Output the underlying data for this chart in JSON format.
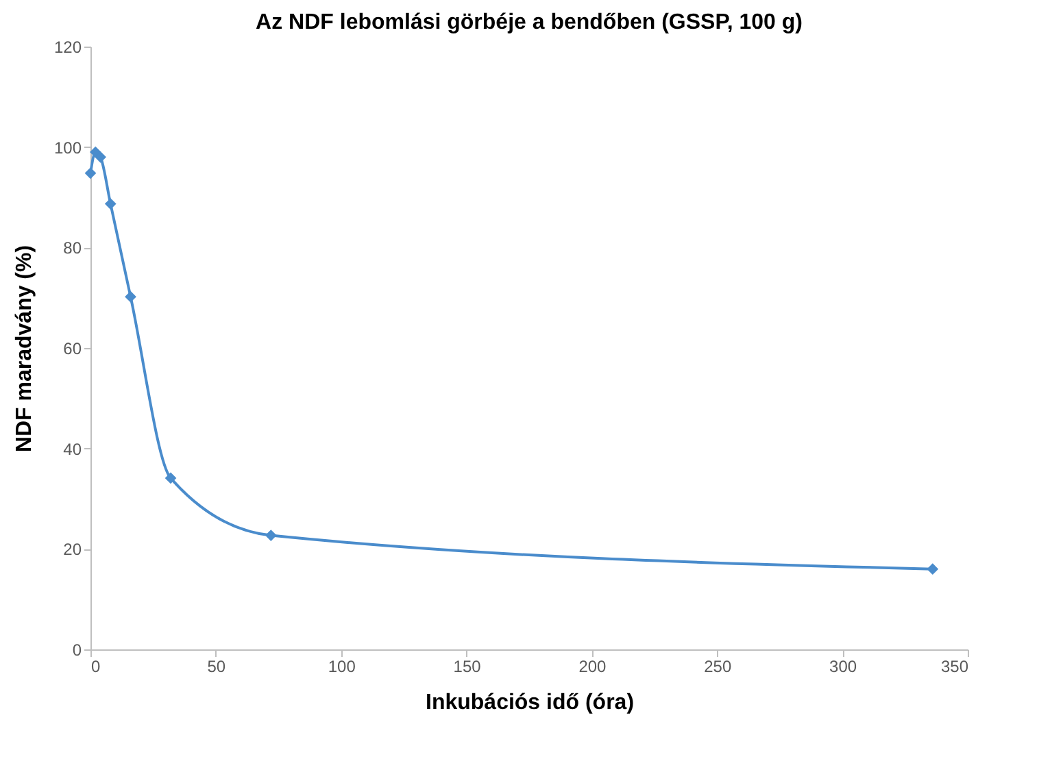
{
  "chart_data": {
    "type": "line",
    "title": "Az NDF lebomlási görbéje a bendőben (GSSP, 100 g)",
    "xlabel": "Inkubációs idő (óra)",
    "ylabel": "NDF maradvány (%)",
    "x": [
      0,
      2,
      4,
      8,
      16,
      32,
      72,
      336
    ],
    "series": [
      {
        "color": "#4a8ccc",
        "values": [
          94.8,
          99,
          98,
          88.7,
          70.2,
          34.1,
          22.7,
          16
        ]
      }
    ],
    "xlim": [
      0,
      350
    ],
    "xticks": [
      0,
      50,
      100,
      150,
      200,
      250,
      300,
      350
    ],
    "ylim": [
      0,
      120
    ],
    "yticks": [
      0,
      20,
      40,
      60,
      80,
      100,
      120
    ],
    "grid": false,
    "marker": "diamond",
    "line_style": "solid",
    "legend": false
  }
}
